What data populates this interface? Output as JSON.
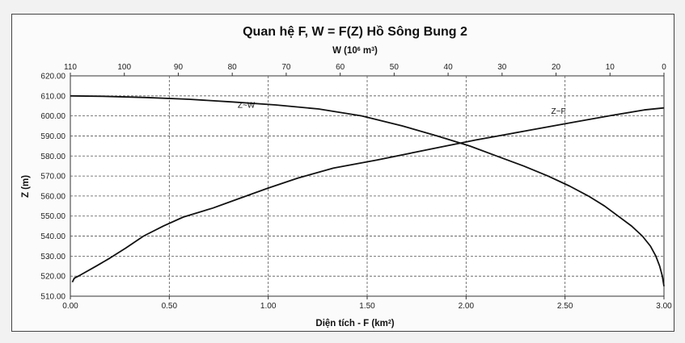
{
  "chart_data": {
    "type": "line",
    "title": "Quan hệ F, W = F(Z) Hồ Sông Bung 2",
    "top_axis": {
      "label_main": "W (10",
      "label_sup": "6",
      "label_tail": " m",
      "label_sup2": "3",
      "label_end": ")",
      "ticks": [
        "110",
        "100",
        "90",
        "80",
        "70",
        "60",
        "50",
        "40",
        "30",
        "20",
        "10",
        "0"
      ],
      "range": [
        110,
        0
      ],
      "grid": true
    },
    "bottom_axis": {
      "label_main": "Diện tích - F (km",
      "label_sup": "2",
      "label_end": ")",
      "ticks": [
        "0.00",
        "0.50",
        "1.00",
        "1.50",
        "2.00",
        "2.50",
        "3.00"
      ],
      "range": [
        0,
        3
      ],
      "grid": true
    },
    "y_axis": {
      "label": "Z (m)",
      "ticks": [
        "510.00",
        "520.00",
        "530.00",
        "540.00",
        "550.00",
        "560.00",
        "570.00",
        "580.00",
        "590.00",
        "600.00",
        "610.00",
        "620.00"
      ],
      "range": [
        510,
        620
      ],
      "grid": true
    },
    "series": [
      {
        "name": "Z~W",
        "axis": "top",
        "points": [
          [
            0,
            515
          ],
          [
            0.3,
            520
          ],
          [
            0.8,
            525
          ],
          [
            1.5,
            530
          ],
          [
            2.5,
            535
          ],
          [
            4,
            540
          ],
          [
            6,
            545
          ],
          [
            8.5,
            550
          ],
          [
            11,
            555
          ],
          [
            14,
            560
          ],
          [
            17.5,
            565
          ],
          [
            21.5,
            570
          ],
          [
            26,
            575
          ],
          [
            31,
            580
          ],
          [
            36,
            585
          ],
          [
            42,
            590
          ],
          [
            48.5,
            595
          ],
          [
            56,
            600
          ],
          [
            64,
            603.5
          ],
          [
            72,
            605.5
          ],
          [
            80,
            607
          ],
          [
            88,
            608.3
          ],
          [
            96,
            609.2
          ],
          [
            104,
            609.8
          ],
          [
            110,
            610
          ]
        ]
      },
      {
        "name": "Z~F",
        "axis": "bottom",
        "points": [
          [
            0.01,
            517
          ],
          [
            0.02,
            519
          ],
          [
            0.05,
            520.5
          ],
          [
            0.13,
            525
          ],
          [
            0.2,
            529
          ],
          [
            0.28,
            534
          ],
          [
            0.37,
            540
          ],
          [
            0.47,
            545
          ],
          [
            0.57,
            549.5
          ],
          [
            0.72,
            554
          ],
          [
            0.86,
            559
          ],
          [
            1.0,
            564
          ],
          [
            1.15,
            569
          ],
          [
            1.33,
            574
          ],
          [
            1.55,
            578
          ],
          [
            1.8,
            583
          ],
          [
            2.05,
            588
          ],
          [
            2.3,
            592.5
          ],
          [
            2.55,
            597
          ],
          [
            2.75,
            600.5
          ],
          [
            2.9,
            603
          ],
          [
            3.0,
            604
          ]
        ]
      }
    ],
    "annotations": [
      "Z~W",
      "Z~F"
    ]
  }
}
